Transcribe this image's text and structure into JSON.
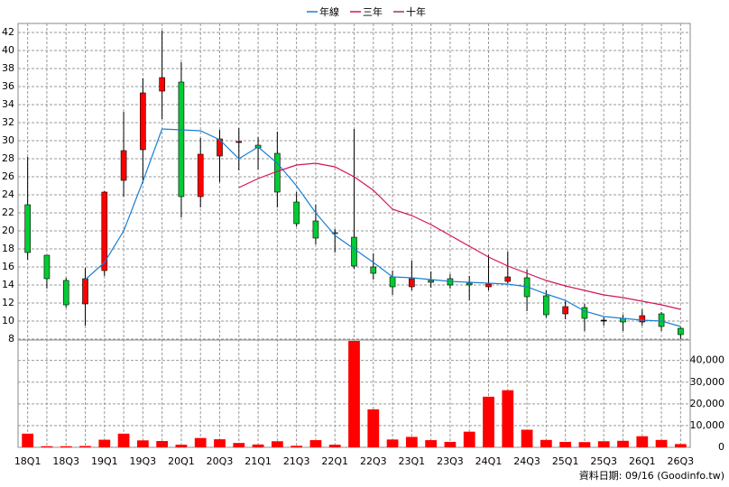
{
  "chart_data": {
    "type": "candlestick",
    "categories": [
      "18Q1",
      null,
      "18Q3",
      null,
      "19Q1",
      null,
      "19Q3",
      null,
      "20Q1",
      null,
      "20Q3",
      null,
      "21Q1",
      null,
      "21Q3",
      null,
      "22Q1",
      null,
      "22Q3",
      null,
      "23Q1",
      null,
      "23Q3",
      null,
      "24Q1",
      null,
      "24Q3",
      null,
      "25Q1",
      null,
      "25Q3",
      null,
      "26Q1",
      null,
      "26Q3"
    ],
    "open": [
      22.9,
      17.3,
      14.5,
      11.9,
      15.6,
      25.6,
      29.0,
      35.5,
      36.5,
      23.8,
      28.3,
      29.8,
      29.5,
      28.6,
      23.2,
      21.1,
      19.8,
      19.3,
      16.0,
      14.9,
      13.8,
      14.5,
      14.7,
      14.2,
      13.8,
      14.4,
      14.8,
      12.8,
      10.8,
      11.5,
      10.1,
      10.3,
      9.9,
      10.8,
      9.2
    ],
    "high": [
      28.2,
      17.3,
      14.8,
      15.9,
      24.4,
      33.2,
      36.9,
      42.2,
      38.7,
      30.3,
      31.2,
      31.4,
      30.4,
      31.0,
      24.3,
      22.9,
      20.2,
      31.3,
      17.5,
      15.6,
      16.7,
      15.5,
      15.2,
      15.0,
      17.3,
      17.7,
      15.7,
      13.4,
      12.2,
      11.9,
      10.4,
      10.7,
      11.3,
      11.0,
      9.3
    ],
    "low": [
      16.8,
      13.6,
      11.5,
      9.5,
      15.0,
      23.8,
      25.3,
      32.4,
      21.5,
      22.6,
      25.4,
      26.7,
      26.8,
      22.6,
      20.5,
      18.5,
      17.6,
      15.8,
      14.6,
      12.9,
      13.4,
      13.7,
      13.6,
      12.3,
      13.4,
      14.2,
      11.1,
      10.4,
      10.2,
      8.9,
      9.5,
      8.9,
      9.5,
      8.9,
      8.0
    ],
    "close": [
      17.6,
      14.7,
      11.8,
      14.7,
      24.3,
      28.9,
      35.3,
      37.0,
      23.8,
      28.5,
      30.2,
      29.9,
      29.2,
      24.3,
      20.8,
      19.2,
      19.7,
      16.1,
      15.3,
      13.8,
      14.7,
      14.3,
      14.0,
      14.0,
      14.1,
      14.9,
      12.7,
      10.7,
      11.6,
      10.3,
      10.1,
      9.9,
      10.6,
      9.4,
      8.5
    ],
    "up_color": "#ff0000",
    "down_color": "#00cc33",
    "ylim": [
      8,
      43
    ],
    "yticks": [
      8,
      10,
      12,
      14,
      16,
      18,
      20,
      22,
      24,
      26,
      28,
      30,
      32,
      34,
      36,
      38,
      40,
      42
    ],
    "grid": true,
    "series": [
      {
        "name": "年線",
        "color": "#1a7fd4",
        "values": [
          null,
          null,
          null,
          14.6,
          16.5,
          20.0,
          25.5,
          31.3,
          31.2,
          31.1,
          30.1,
          28.0,
          29.3,
          27.5,
          25.0,
          22.0,
          19.5,
          18.0,
          16.5,
          14.9,
          14.8,
          14.6,
          14.4,
          14.3,
          14.2,
          14.1,
          13.8,
          13.0,
          12.3,
          11.1,
          10.5,
          10.3,
          10.1,
          10.0,
          9.4
        ]
      },
      {
        "name": "三年",
        "color": "#d4145a",
        "values": [
          null,
          null,
          null,
          null,
          null,
          null,
          null,
          null,
          null,
          null,
          null,
          24.8,
          25.8,
          26.6,
          27.3,
          27.5,
          27.1,
          26.0,
          24.5,
          22.4,
          21.7,
          20.7,
          19.5,
          18.3,
          17.1,
          16.1,
          15.3,
          14.5,
          13.9,
          13.4,
          12.9,
          12.6,
          12.2,
          11.8,
          11.3
        ]
      },
      {
        "name": "十年",
        "color": "#a0306e",
        "values": [
          null,
          null,
          null,
          null,
          null,
          null,
          null,
          null,
          null,
          null,
          null,
          null,
          null,
          null,
          null,
          null,
          null,
          null,
          null,
          null,
          null,
          null,
          null,
          null,
          null,
          null,
          null,
          null,
          null,
          null,
          null,
          null,
          null,
          null,
          null
        ]
      }
    ],
    "volume": {
      "color": "#ff0000",
      "values": [
        6300,
        500,
        500,
        600,
        3500,
        6300,
        3200,
        2900,
        1200,
        4300,
        3700,
        2000,
        1300,
        2800,
        700,
        3300,
        1200,
        49000,
        17500,
        3600,
        4800,
        3300,
        2500,
        7200,
        23300,
        26300,
        8100,
        3400,
        2500,
        2400,
        2800,
        3000,
        5100,
        3400,
        1500
      ],
      "ylim": [
        0,
        49000
      ],
      "yticks": [
        0,
        {
          "value": 10000,
          "label": "10,000"
        },
        {
          "value": 20000,
          "label": "20,000"
        },
        {
          "value": 30000,
          "label": "30,000"
        },
        {
          "value": 40000,
          "label": "40,000"
        }
      ]
    },
    "source": "資料日期: 09/16  (Goodinfo.tw)"
  }
}
